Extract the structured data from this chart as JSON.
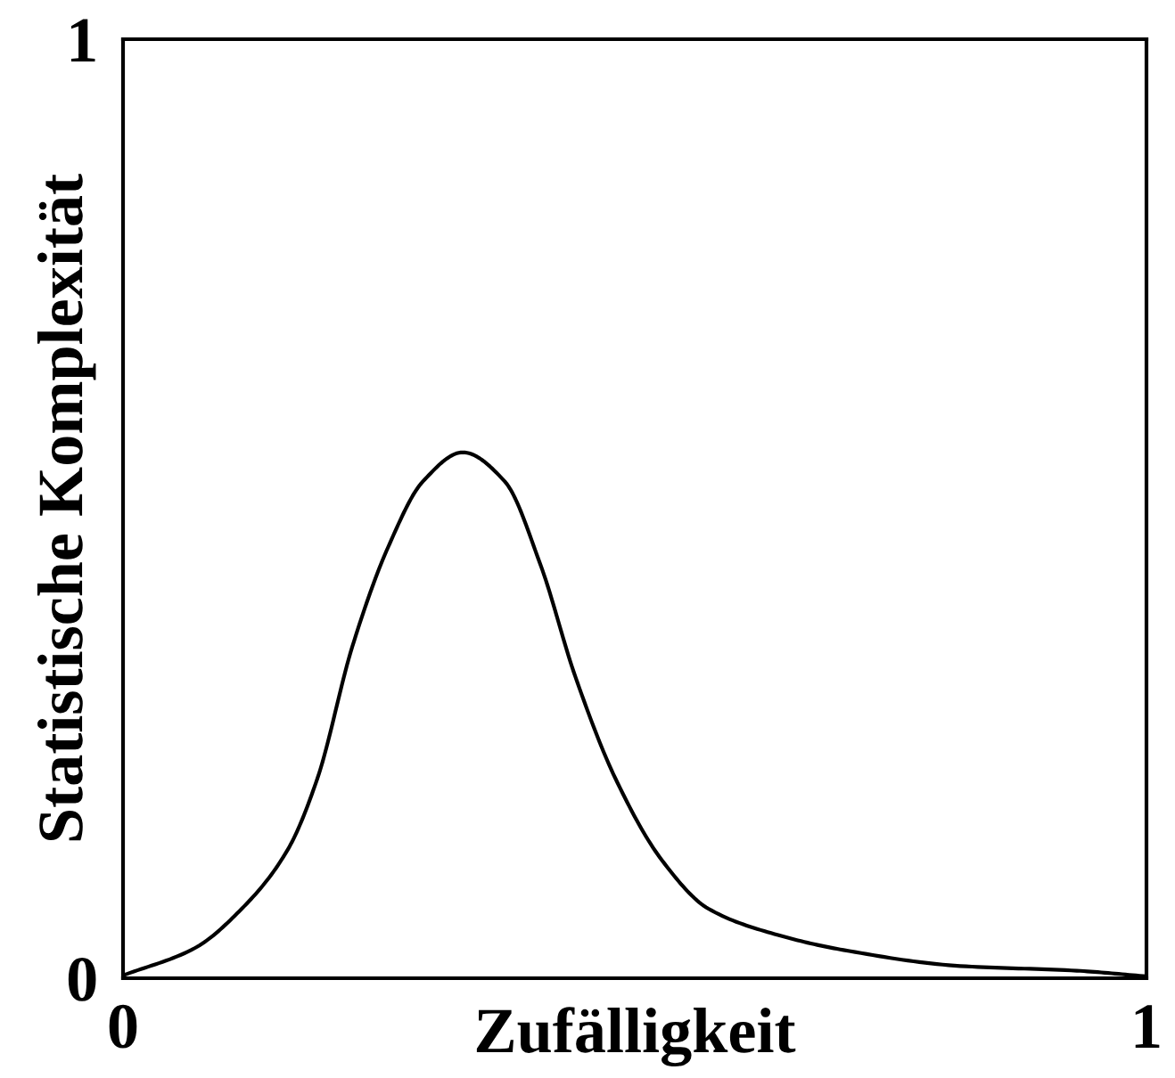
{
  "chart_data": {
    "type": "line",
    "xlabel": "Zufälligkeit",
    "ylabel": "Statistische Komplexität",
    "x": [
      0,
      0.07,
      0.116,
      0.161,
      0.19,
      0.224,
      0.259,
      0.293,
      0.332,
      0.373,
      0.408,
      0.442,
      0.481,
      0.527,
      0.572,
      0.64,
      0.704,
      0.818,
      0.932,
      1.0
    ],
    "series": [
      {
        "color": "#000000",
        "values": [
          0.003,
          0.032,
          0.074,
          0.137,
          0.213,
          0.353,
          0.459,
          0.529,
          0.56,
          0.529,
          0.44,
          0.321,
          0.213,
          0.125,
          0.074,
          0.046,
          0.03,
          0.013,
          0.008,
          0.002
        ]
      }
    ],
    "xlim": [
      0,
      1
    ],
    "ylim": [
      0,
      1
    ],
    "xticks": [
      0,
      1
    ],
    "yticks": [
      0,
      1
    ],
    "legend": false,
    "marker": "none",
    "line_style": "solid"
  }
}
